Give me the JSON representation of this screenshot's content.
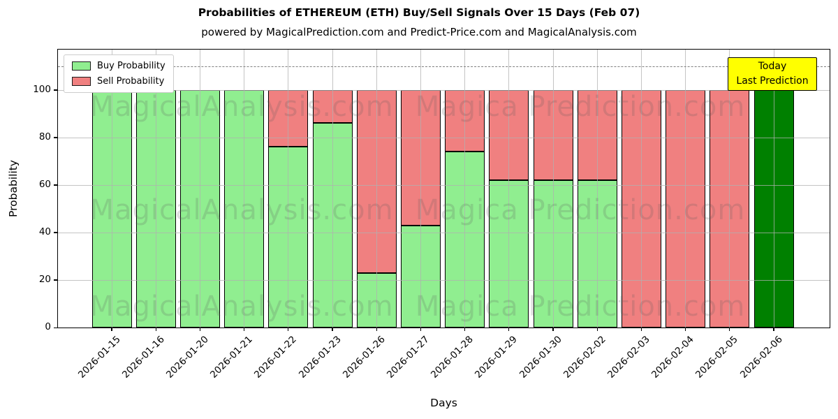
{
  "header": {
    "title": "Probabilities of ETHEREUM (ETH) Buy/Sell Signals Over 15 Days (Feb 07)",
    "subtitle": "powered by MagicalPrediction.com and Predict-Price.com and MagicalAnalysis.com"
  },
  "chart_data": {
    "type": "bar",
    "stacked": true,
    "title": "Probabilities of ETHEREUM (ETH) Buy/Sell Signals Over 15 Days (Feb 07)",
    "xlabel": "Days",
    "ylabel": "Probability",
    "ylim": [
      0,
      117
    ],
    "yticks": [
      0,
      20,
      40,
      60,
      80,
      100
    ],
    "grid": true,
    "dashed_line_y": 110,
    "legend_position": "upper left",
    "categories": [
      "2026-01-15",
      "2026-01-16",
      "2026-01-20",
      "2026-01-21",
      "2026-01-22",
      "2026-01-23",
      "2026-01-26",
      "2026-01-27",
      "2026-01-28",
      "2026-01-29",
      "2026-01-30",
      "2026-02-02",
      "2026-02-03",
      "2026-02-04",
      "2026-02-05",
      "2026-02-06"
    ],
    "series": [
      {
        "name": "Buy Probability",
        "color": "#90ee90",
        "values": [
          100,
          100,
          100,
          100,
          76,
          86,
          23,
          43,
          74,
          62,
          62,
          62,
          0,
          0,
          0,
          100
        ]
      },
      {
        "name": "Sell Probability",
        "color": "#f08080",
        "values": [
          0,
          0,
          0,
          0,
          24,
          14,
          77,
          57,
          26,
          38,
          38,
          38,
          100,
          100,
          100,
          0
        ]
      }
    ],
    "today_bar": {
      "index": 15,
      "color": "#008000",
      "buy": 100
    }
  },
  "annotation": {
    "line1": "Today",
    "line2": "Last Prediction",
    "bg_color": "#ffff00"
  },
  "watermarks": {
    "left_text": "MagicalAnalysis.com",
    "right_text": "Magica Prediction.com"
  },
  "colors": {
    "buy": "#90ee90",
    "sell": "#f08080",
    "today": "#008000",
    "bar_edge": "#000000",
    "grid": "#b0b0b0",
    "dashed_line": "#7f7f7f",
    "annotation_bg": "#ffff00"
  }
}
